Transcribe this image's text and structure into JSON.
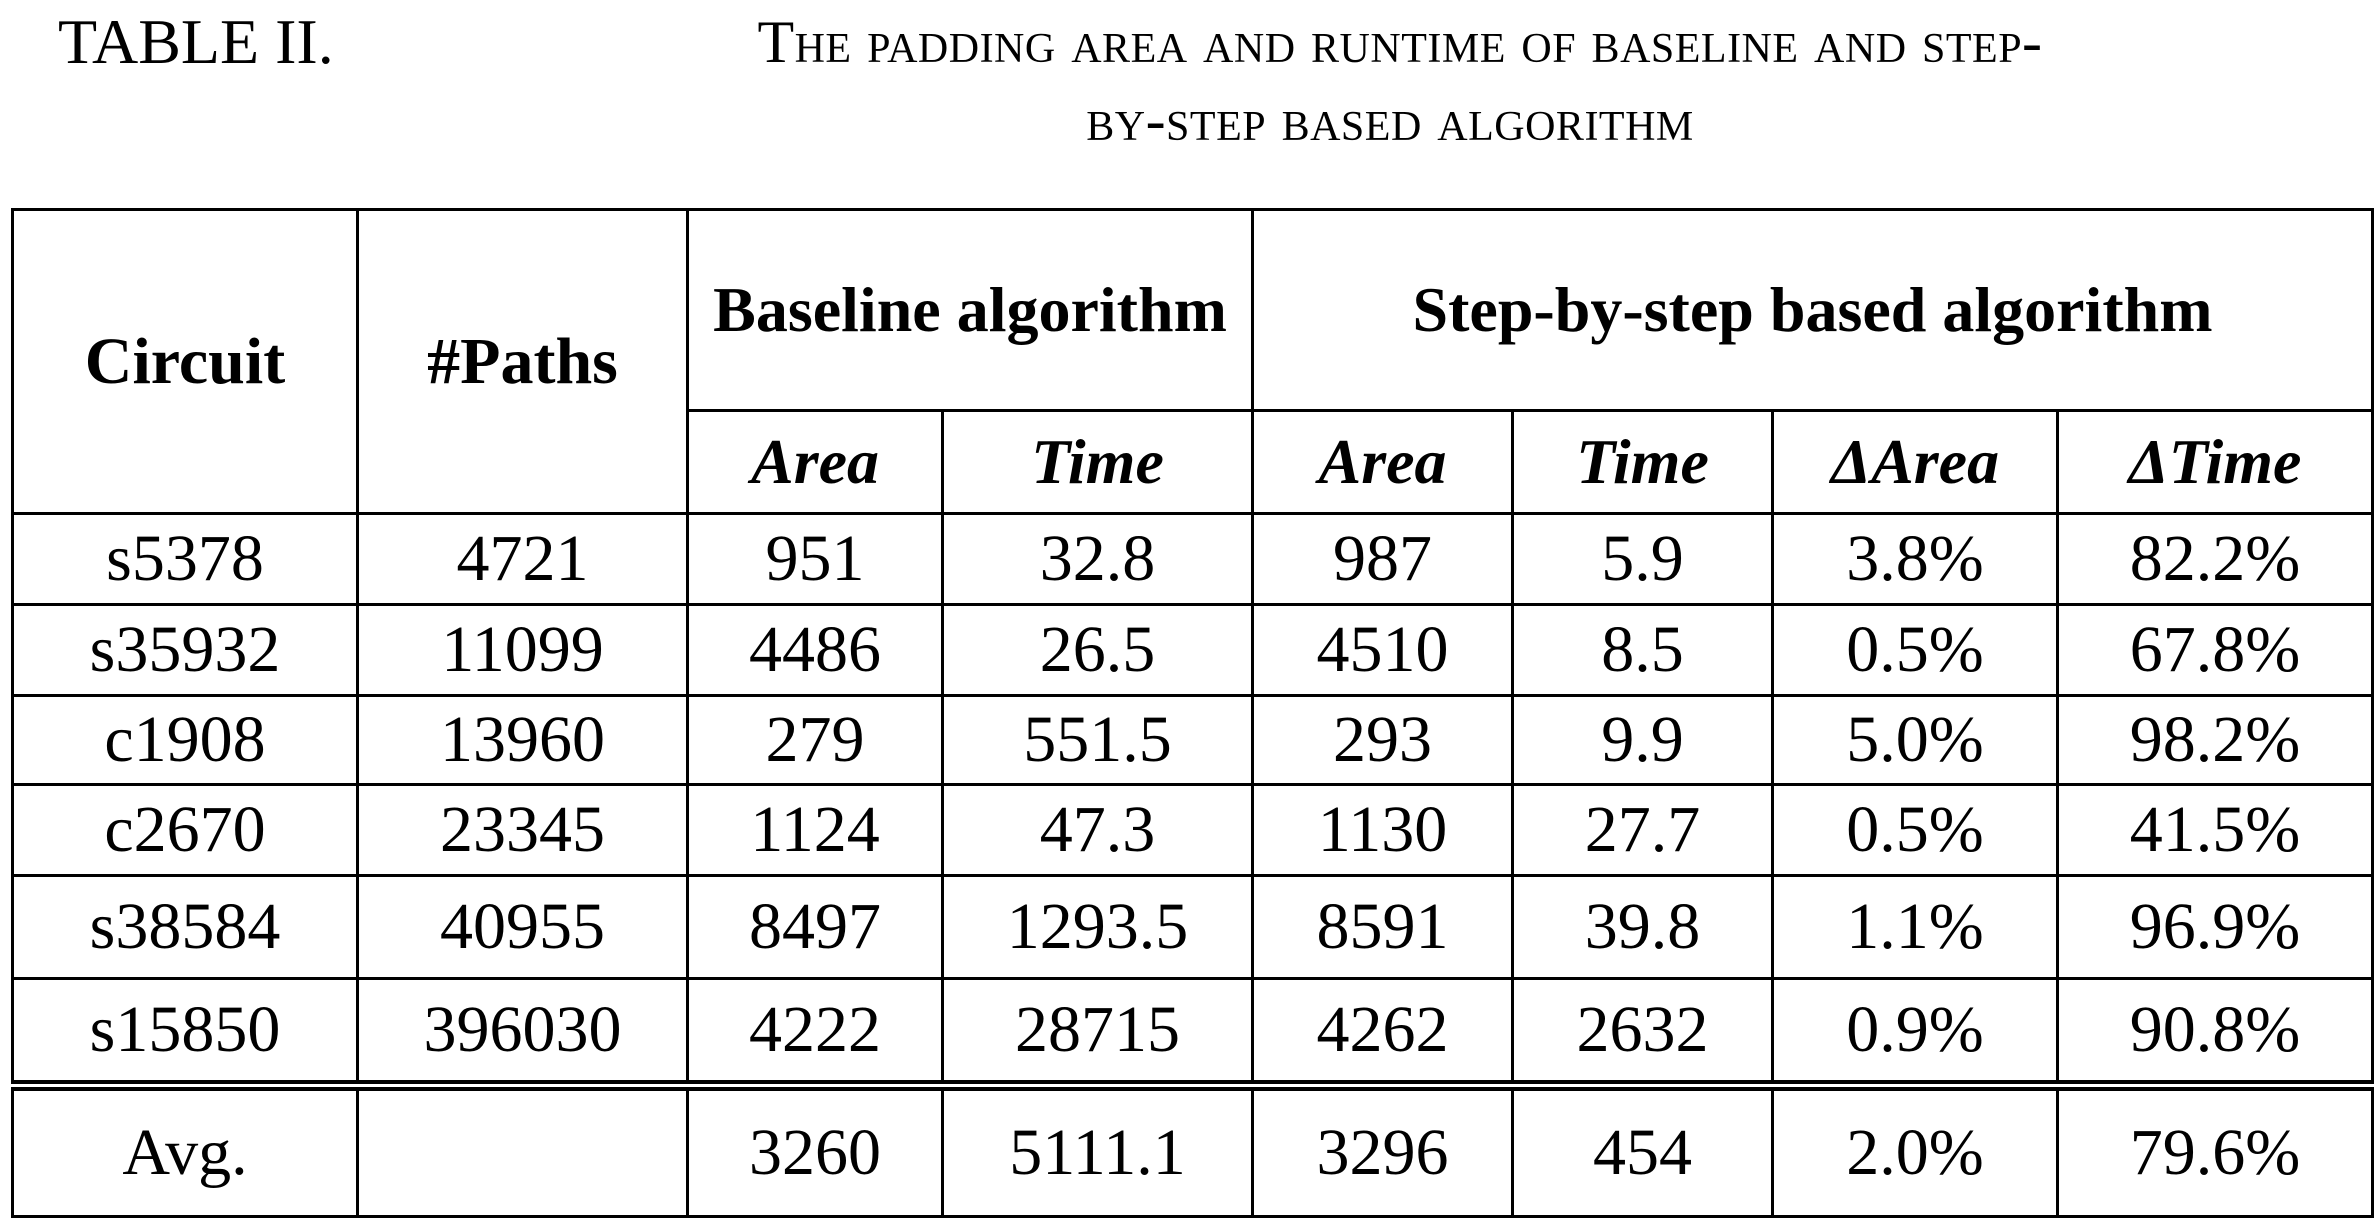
{
  "caption": {
    "label": "TABLE II.",
    "title_line1": "The padding area and runtime of baseline and step-",
    "title_line2": "by-step based algorithm"
  },
  "table": {
    "headers": {
      "circuit": "Circuit",
      "paths": "#Paths",
      "baseline": "Baseline algorithm",
      "stepbystep": "Step-by-step based algorithm",
      "sub": [
        "Area",
        "Time",
        "Area",
        "Time",
        "ΔArea",
        "ΔTime"
      ]
    },
    "rows": [
      [
        "s5378",
        "4721",
        "951",
        "32.8",
        "987",
        "5.9",
        "3.8%",
        "82.2%"
      ],
      [
        "s35932",
        "11099",
        "4486",
        "26.5",
        "4510",
        "8.5",
        "0.5%",
        "67.8%"
      ],
      [
        "c1908",
        "13960",
        "279",
        "551.5",
        "293",
        "9.9",
        "5.0%",
        "98.2%"
      ],
      [
        "c2670",
        "23345",
        "1124",
        "47.3",
        "1130",
        "27.7",
        "0.5%",
        "41.5%"
      ],
      [
        "s38584",
        "40955",
        "8497",
        "1293.5",
        "8591",
        "39.8",
        "1.1%",
        "96.9%"
      ],
      [
        "s15850",
        "396030",
        "4222",
        "28715",
        "4262",
        "2632",
        "0.9%",
        "90.8%"
      ]
    ],
    "avg": [
      "Avg.",
      "",
      "3260",
      "5111.1",
      "3296",
      "454",
      "2.0%",
      "79.6%"
    ]
  }
}
